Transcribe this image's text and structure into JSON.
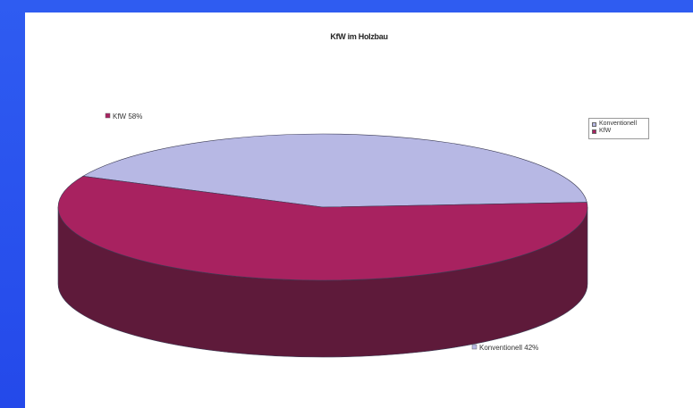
{
  "chart_data": {
    "type": "pie",
    "title": "KfW im Holzbau",
    "style": "3d",
    "legend_position": "right",
    "slices": [
      {
        "name": "Konventionell",
        "value": 42,
        "label": "Konventionell 42%",
        "color_top": "#b7b8e4",
        "color_side": "#5f619e"
      },
      {
        "name": "KfW",
        "value": 58,
        "label": "KfW 58%",
        "color_top": "#a82260",
        "color_side": "#5e1a3a"
      }
    ],
    "legend": [
      {
        "label": "Konventionell",
        "color": "#b7b8e4"
      },
      {
        "label": "KfW",
        "color": "#a82260"
      }
    ]
  }
}
